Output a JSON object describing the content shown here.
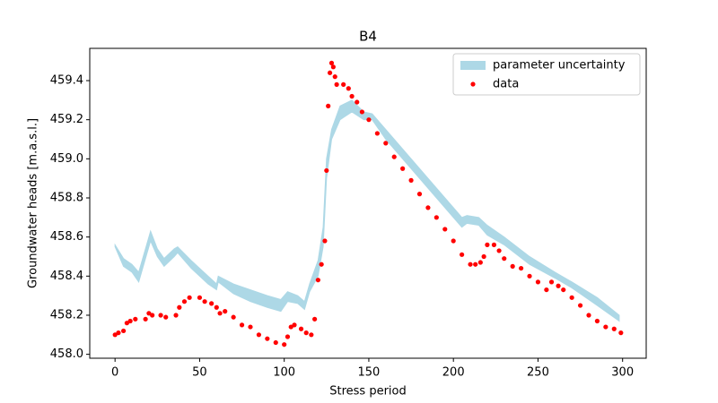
{
  "chart_data": {
    "type": "scatter",
    "title": "B4",
    "xlabel": "Stress period",
    "ylabel": "Groundwater heads [m.a.s.l.]",
    "xlim": [
      -14.95,
      313.95
    ],
    "ylim": [
      457.98,
      459.565
    ],
    "xticks": [
      0,
      50,
      100,
      150,
      200,
      250,
      300
    ],
    "yticks": [
      {
        "value": 458,
        "label": "458.0"
      },
      458.2,
      458.4,
      458.6,
      458.8,
      {
        "value": 459,
        "label": "459.0"
      },
      459.2,
      459.4
    ],
    "legend": "upper right",
    "band": {
      "name": "parameter uncertainty",
      "color": "#add8e6",
      "x": [
        0,
        5,
        10,
        14,
        20,
        21,
        25,
        29,
        35,
        37,
        45,
        55,
        60,
        61,
        70,
        80,
        90,
        98,
        102,
        108,
        112,
        115,
        120,
        123,
        125,
        128,
        133,
        140,
        147,
        152,
        160,
        175,
        190,
        205,
        208,
        215,
        220,
        230,
        245,
        260,
        270,
        285,
        298
      ],
      "lower": [
        458.55,
        458.45,
        458.42,
        458.37,
        458.55,
        458.58,
        458.5,
        458.45,
        458.5,
        458.52,
        458.44,
        458.36,
        458.33,
        458.37,
        458.31,
        458.27,
        458.24,
        458.22,
        458.27,
        458.26,
        458.23,
        458.32,
        458.4,
        458.55,
        458.9,
        459.1,
        459.2,
        459.24,
        459.2,
        459.2,
        459.1,
        458.95,
        458.8,
        458.65,
        458.67,
        458.66,
        458.61,
        458.56,
        458.46,
        458.39,
        458.34,
        458.25,
        458.17
      ],
      "upper": [
        458.56,
        458.49,
        458.46,
        458.42,
        458.6,
        458.63,
        458.54,
        458.49,
        458.54,
        458.55,
        458.48,
        458.4,
        458.36,
        458.4,
        458.36,
        458.33,
        458.3,
        458.28,
        458.32,
        458.3,
        458.27,
        458.36,
        458.48,
        458.65,
        459.0,
        459.15,
        459.27,
        459.3,
        459.24,
        459.23,
        459.15,
        459.0,
        458.85,
        458.7,
        458.71,
        458.7,
        458.66,
        458.6,
        458.5,
        458.42,
        458.37,
        458.29,
        458.2
      ]
    },
    "series": [
      {
        "name": "data",
        "color": "#ff0000",
        "x": [
          0,
          2,
          5,
          7,
          9,
          12,
          18,
          20,
          22,
          27,
          30,
          36,
          38,
          41,
          44,
          50,
          53,
          57,
          60,
          62,
          65,
          70,
          75,
          80,
          85,
          90,
          95,
          100,
          102,
          104,
          106,
          110,
          113,
          116,
          118,
          120,
          122,
          124,
          125,
          126,
          127,
          128,
          129,
          130,
          131,
          135,
          138,
          140,
          143,
          146,
          150,
          155,
          160,
          165,
          170,
          175,
          180,
          185,
          190,
          195,
          200,
          205,
          210,
          213,
          216,
          218,
          220,
          224,
          227,
          230,
          235,
          240,
          245,
          250,
          255,
          258,
          262,
          265,
          270,
          275,
          280,
          285,
          290,
          295,
          299
        ],
        "values": [
          458.1,
          458.11,
          458.12,
          458.16,
          458.17,
          458.18,
          458.18,
          458.21,
          458.2,
          458.2,
          458.19,
          458.2,
          458.24,
          458.27,
          458.29,
          458.29,
          458.27,
          458.26,
          458.24,
          458.21,
          458.22,
          458.19,
          458.15,
          458.14,
          458.1,
          458.08,
          458.06,
          458.05,
          458.09,
          458.14,
          458.15,
          458.13,
          458.11,
          458.1,
          458.18,
          458.38,
          458.46,
          458.58,
          458.94,
          459.27,
          459.44,
          459.49,
          459.47,
          459.42,
          459.38,
          459.38,
          459.36,
          459.32,
          459.29,
          459.24,
          459.2,
          459.13,
          459.08,
          459.01,
          458.95,
          458.89,
          458.82,
          458.75,
          458.7,
          458.64,
          458.58,
          458.51,
          458.46,
          458.46,
          458.47,
          458.5,
          458.56,
          458.56,
          458.53,
          458.49,
          458.45,
          458.44,
          458.4,
          458.37,
          458.33,
          458.37,
          458.35,
          458.33,
          458.29,
          458.25,
          458.2,
          458.17,
          458.14,
          458.13,
          458.11
        ]
      }
    ]
  }
}
